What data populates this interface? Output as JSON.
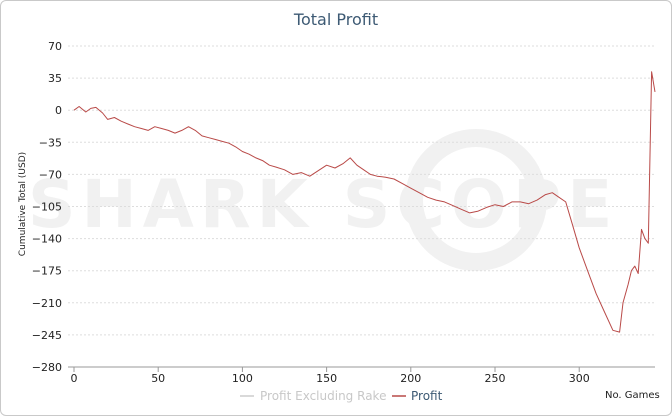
{
  "chart_data": {
    "type": "line",
    "title": "Total Profit",
    "xlabel": "No. Games",
    "ylabel": "Cumulative Total (USD)",
    "xlim": [
      0,
      345
    ],
    "ylim": [
      -280,
      70
    ],
    "x_ticks": [
      "0",
      "50",
      "100",
      "150",
      "200",
      "250",
      "300"
    ],
    "y_ticks": [
      "70",
      "35",
      "0",
      "−35",
      "−70",
      "−105",
      "−140",
      "−175",
      "−210",
      "−245",
      "−280"
    ],
    "grid": true,
    "legend_position": "bottom-center",
    "watermark": "SHARK SCOPE",
    "series": [
      {
        "name": "Profit Excluding Rake",
        "color": "#cccccc",
        "x": [],
        "y": []
      },
      {
        "name": "Profit",
        "color": "#b94a48",
        "x": [
          0,
          3,
          7,
          10,
          13,
          17,
          20,
          24,
          28,
          32,
          36,
          40,
          44,
          48,
          52,
          56,
          60,
          64,
          68,
          72,
          76,
          80,
          84,
          88,
          92,
          96,
          100,
          104,
          108,
          112,
          116,
          120,
          125,
          130,
          135,
          140,
          145,
          150,
          155,
          160,
          164,
          168,
          172,
          176,
          180,
          185,
          190,
          195,
          200,
          205,
          210,
          215,
          220,
          225,
          230,
          235,
          240,
          245,
          250,
          255,
          260,
          265,
          270,
          275,
          280,
          284,
          288,
          292,
          296,
          300,
          305,
          310,
          315,
          320,
          324,
          326,
          329,
          331,
          333,
          335,
          337,
          339,
          341,
          343,
          345
        ],
        "y": [
          0,
          4,
          -2,
          2,
          3,
          -3,
          -10,
          -8,
          -12,
          -15,
          -18,
          -20,
          -22,
          -18,
          -20,
          -22,
          -25,
          -22,
          -18,
          -22,
          -28,
          -30,
          -32,
          -34,
          -36,
          -40,
          -45,
          -48,
          -52,
          -55,
          -60,
          -62,
          -65,
          -70,
          -68,
          -72,
          -66,
          -60,
          -63,
          -58,
          -52,
          -60,
          -65,
          -70,
          -72,
          -73,
          -75,
          -80,
          -85,
          -90,
          -95,
          -98,
          -100,
          -104,
          -108,
          -112,
          -110,
          -106,
          -103,
          -105,
          -100,
          -100,
          -102,
          -98,
          -92,
          -90,
          -95,
          -100,
          -125,
          -150,
          -175,
          -200,
          -220,
          -240,
          -242,
          -210,
          -190,
          -175,
          -170,
          -178,
          -130,
          -140,
          -145,
          42,
          20
        ]
      }
    ]
  }
}
